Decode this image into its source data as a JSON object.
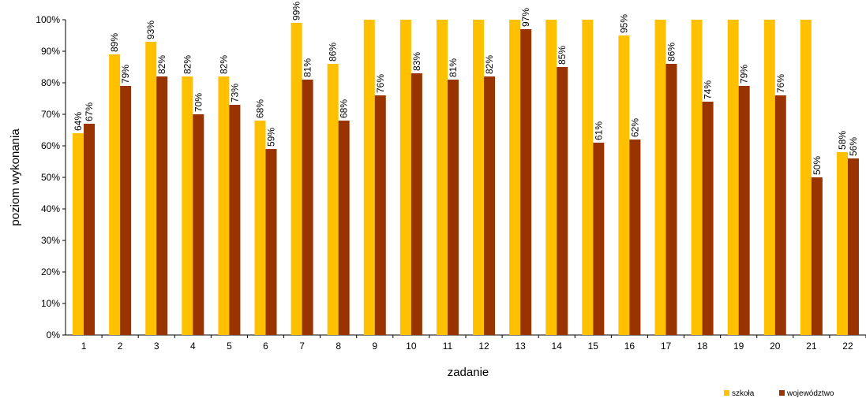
{
  "chart_data": {
    "type": "bar",
    "xlabel": "zadanie",
    "ylabel": "poziom wykonania",
    "ylim": [
      0,
      100
    ],
    "yticks": [
      "0%",
      "10%",
      "20%",
      "30%",
      "40%",
      "50%",
      "60%",
      "70%",
      "80%",
      "90%",
      "100%"
    ],
    "categories": [
      "1",
      "2",
      "3",
      "4",
      "5",
      "6",
      "7",
      "8",
      "9",
      "10",
      "11",
      "12",
      "13",
      "14",
      "15",
      "16",
      "17",
      "18",
      "19",
      "20",
      "21",
      "22"
    ],
    "series": [
      {
        "name": "szkoła",
        "color": "#ffc000",
        "values": [
          64,
          89,
          93,
          82,
          82,
          68,
          99,
          86,
          100,
          100,
          100,
          100,
          100,
          100,
          100,
          95,
          100,
          100,
          100,
          100,
          100,
          58
        ],
        "labels": [
          "64%",
          "89%",
          "93%",
          "82%",
          "82%",
          "68%",
          "99%",
          "86%",
          "",
          "",
          "",
          "",
          "",
          "",
          "",
          "95%",
          "",
          "",
          "",
          "",
          "",
          "58%"
        ]
      },
      {
        "name": "województwo",
        "color": "#993300",
        "values": [
          67,
          79,
          82,
          70,
          73,
          59,
          81,
          68,
          76,
          83,
          81,
          82,
          97,
          85,
          61,
          62,
          86,
          74,
          79,
          76,
          50,
          56
        ],
        "labels": [
          "67%",
          "79%",
          "82%",
          "70%",
          "73%",
          "59%",
          "81%",
          "68%",
          "76%",
          "83%",
          "81%",
          "82%",
          "97%",
          "85%",
          "61%",
          "62%",
          "86%",
          "74%",
          "79%",
          "76%",
          "50%",
          "56%"
        ]
      }
    ],
    "legend_position": "bottom-right",
    "grid": false
  }
}
